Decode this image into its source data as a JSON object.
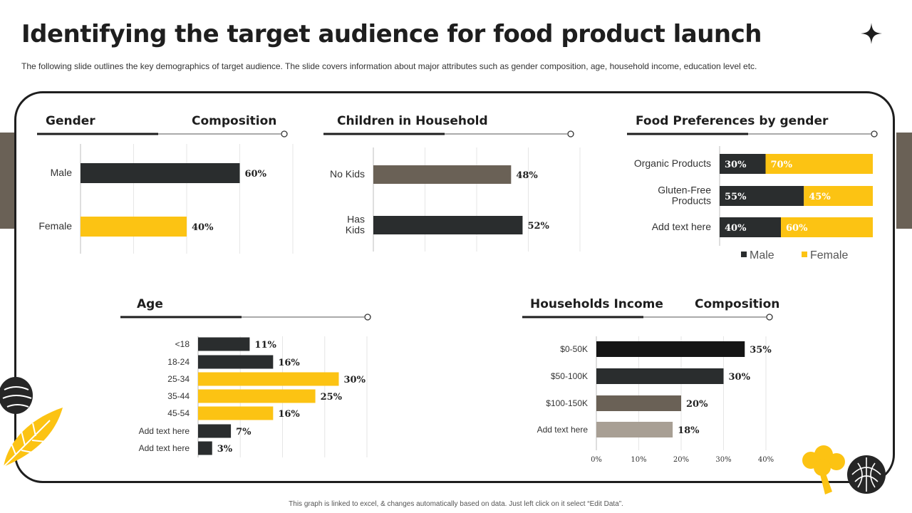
{
  "slide": {
    "title": "Identifying the target audience for food product launch",
    "subtitle": "The following slide outlines the key demographics of target audience. The slide covers information about major attributes such as gender composition, age, household income, education level etc.",
    "footer": "This graph is linked to excel, & changes automatically based on data. Just left click on it select “Edit Data”."
  },
  "sections": {
    "gender_left": "Gender",
    "gender_right": "Composition",
    "children": "Children in Household",
    "food": "Food Preferences by gender",
    "age": "Age",
    "income_left": "Households Income",
    "income_right": "Composition"
  },
  "colors": {
    "dark": "#2a2d2e",
    "yellow": "#fcc313",
    "brown": "#6a6156",
    "light_brown": "#a89f94",
    "black": "#151515"
  },
  "chart_data": [
    {
      "id": "gender",
      "type": "bar",
      "orientation": "horizontal",
      "title": "Gender Composition",
      "categories": [
        "Male",
        "Female"
      ],
      "values": [
        60,
        40
      ],
      "labels": [
        "60%",
        "40%"
      ],
      "bar_colors": [
        "#2a2d2e",
        "#fcc313"
      ],
      "xlim": [
        0,
        80
      ]
    },
    {
      "id": "children",
      "type": "bar",
      "orientation": "horizontal",
      "title": "Children in Household",
      "categories": [
        "No Kids",
        "Has Kids"
      ],
      "values": [
        48,
        52
      ],
      "labels": [
        "48%",
        "52%"
      ],
      "bar_colors": [
        "#6a6156",
        "#2a2d2e"
      ],
      "xlim": [
        0,
        72
      ]
    },
    {
      "id": "food",
      "type": "bar",
      "orientation": "horizontal",
      "stacked": true,
      "title": "Food Preferences by gender",
      "categories": [
        "Organic Products",
        "Gluten-Free Products",
        "Add text here"
      ],
      "series": [
        {
          "name": "Male",
          "values": [
            30,
            55,
            40
          ],
          "labels": [
            "30%",
            "55%",
            "40%"
          ],
          "color": "#2a2d2e"
        },
        {
          "name": "Female",
          "values": [
            70,
            45,
            60
          ],
          "labels": [
            "70%",
            "45%",
            "60%"
          ],
          "color": "#fcc313"
        }
      ],
      "legend": [
        "Male",
        "Female"
      ],
      "xlim": [
        0,
        100
      ]
    },
    {
      "id": "age",
      "type": "bar",
      "orientation": "horizontal",
      "title": "Age",
      "categories": [
        "<18",
        "18-24",
        "25-34",
        "35-44",
        "45-54",
        "Add text here",
        "Add text here"
      ],
      "values": [
        11,
        16,
        30,
        25,
        16,
        7,
        3
      ],
      "labels": [
        "11%",
        "16%",
        "30%",
        "25%",
        "16%",
        "7%",
        "3%"
      ],
      "bar_colors": [
        "#2a2d2e",
        "#2a2d2e",
        "#fcc313",
        "#fcc313",
        "#fcc313",
        "#2a2d2e",
        "#2a2d2e"
      ],
      "xlim": [
        0,
        36
      ]
    },
    {
      "id": "income",
      "type": "bar",
      "orientation": "horizontal",
      "title": "Households Income Composition",
      "categories": [
        "$0-50K",
        "$50-100K",
        "$100-150K",
        "Add text here"
      ],
      "values": [
        35,
        30,
        20,
        18
      ],
      "labels": [
        "35%",
        "30%",
        "20%",
        "18%"
      ],
      "bar_colors": [
        "#151515",
        "#2a2d2e",
        "#6a6156",
        "#a89f94"
      ],
      "xlim": [
        0,
        40
      ],
      "xticks": [
        "0%",
        "10%",
        "20%",
        "30%",
        "40%"
      ]
    }
  ]
}
